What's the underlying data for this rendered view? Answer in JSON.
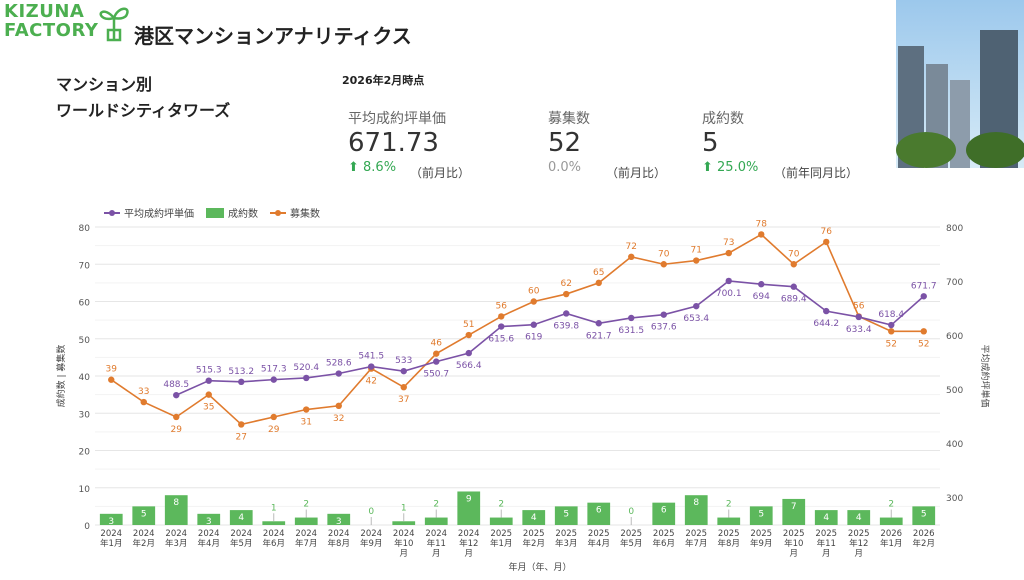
{
  "header": {
    "logo_line1": "KIZUNA",
    "logo_line2": "FACTORY",
    "title": "港区マンションアナリティクス"
  },
  "subtitle": {
    "line1": "マンション別",
    "line2": "ワールドシティタワーズ"
  },
  "as_of": "2026年2月時点",
  "kpis": [
    {
      "label": "平均成約坪単価",
      "value": "671.73",
      "change": "8.6%",
      "trend": "up",
      "compare": "（前月比）"
    },
    {
      "label": "募集数",
      "value": "52",
      "change": "0.0%",
      "trend": "flat",
      "compare": "（前月比）"
    },
    {
      "label": "成約数",
      "value": "5",
      "change": "25.0%",
      "trend": "up",
      "compare": "（前年同月比）"
    }
  ],
  "colors": {
    "price": "#7b52a6",
    "deals": "#5cb85c",
    "listings": "#e07b2e"
  },
  "chart_data": {
    "type": "bar+line",
    "categories": [
      "2024年1月",
      "2024年2月",
      "2024年3月",
      "2024年4月",
      "2024年5月",
      "2024年6月",
      "2024年7月",
      "2024年8月",
      "2024年9月",
      "2024年10月",
      "2024年11月",
      "2024年12月",
      "2025年1月",
      "2025年2月",
      "2025年3月",
      "2025年4月",
      "2025年5月",
      "2025年6月",
      "2025年7月",
      "2025年8月",
      "2025年9月",
      "2025年10月",
      "2025年11月",
      "2025年12月",
      "2026年1月",
      "2026年2月"
    ],
    "series": [
      {
        "name": "平均成約坪単価",
        "type": "line",
        "axis": "right",
        "values": [
          null,
          null,
          488.5,
          515.3,
          513.2,
          517.3,
          520.4,
          528.6,
          541.5,
          533,
          550.7,
          566.4,
          615.6,
          619,
          639.8,
          621.7,
          631.5,
          637.6,
          653.4,
          700.1,
          694,
          689.4,
          644.2,
          633.4,
          618.4,
          671.7
        ]
      },
      {
        "name": "成約数",
        "type": "bar",
        "axis": "left",
        "values": [
          3,
          5,
          8,
          3,
          4,
          1,
          2,
          3,
          0,
          1,
          2,
          9,
          2,
          4,
          5,
          6,
          0,
          6,
          8,
          2,
          5,
          7,
          4,
          4,
          2,
          5
        ]
      },
      {
        "name": "募集数",
        "type": "line",
        "axis": "left",
        "values": [
          39,
          33,
          29,
          35,
          27,
          29,
          31,
          32,
          42,
          37,
          46,
          51,
          56,
          60,
          62,
          65,
          72,
          70,
          71,
          73,
          78,
          70,
          76,
          56,
          52,
          52
        ]
      }
    ],
    "ylabel": "成約数 | 募集数",
    "y2label": "平均成約坪単価",
    "xlabel": "年月（年、月）",
    "ylim": [
      0,
      80
    ],
    "yticks": [
      0,
      10,
      20,
      30,
      40,
      50,
      60,
      70,
      80
    ],
    "y2lim": [
      248,
      800
    ],
    "y2ticks": [
      300,
      400,
      500,
      600,
      700,
      800
    ],
    "legend": "top-left",
    "grid": true
  }
}
